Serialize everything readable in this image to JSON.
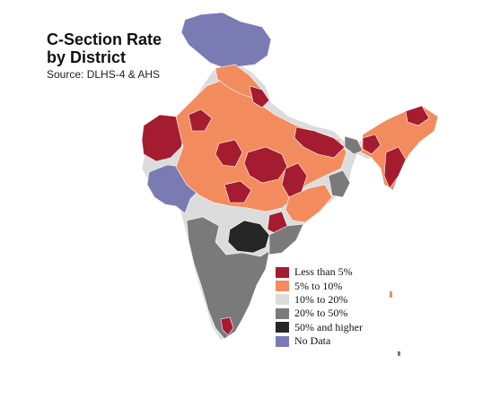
{
  "title": {
    "line1": "C-Section Rate",
    "line2": "by District",
    "source": "Source: DLHS-4 & AHS"
  },
  "colors": {
    "less_than_5": "#a51c30",
    "5_to_10": "#f28c5e",
    "10_to_20": "#dcdcdc",
    "20_to_50": "#7a7a7a",
    "50_and_higher": "#262626",
    "no_data": "#7b7bb4",
    "district_border": "#ffffff"
  },
  "legend": {
    "items": [
      {
        "label": "Less than 5%",
        "color": "#a51c30"
      },
      {
        "label": "5% to 10%",
        "color": "#f28c5e"
      },
      {
        "label": "10% to 20%",
        "color": "#dcdcdc"
      },
      {
        "label": "20% to 50%",
        "color": "#7a7a7a"
      },
      {
        "label": "50% and higher",
        "color": "#262626"
      },
      {
        "label": "No Data",
        "color": "#7b7bb4"
      }
    ]
  }
}
